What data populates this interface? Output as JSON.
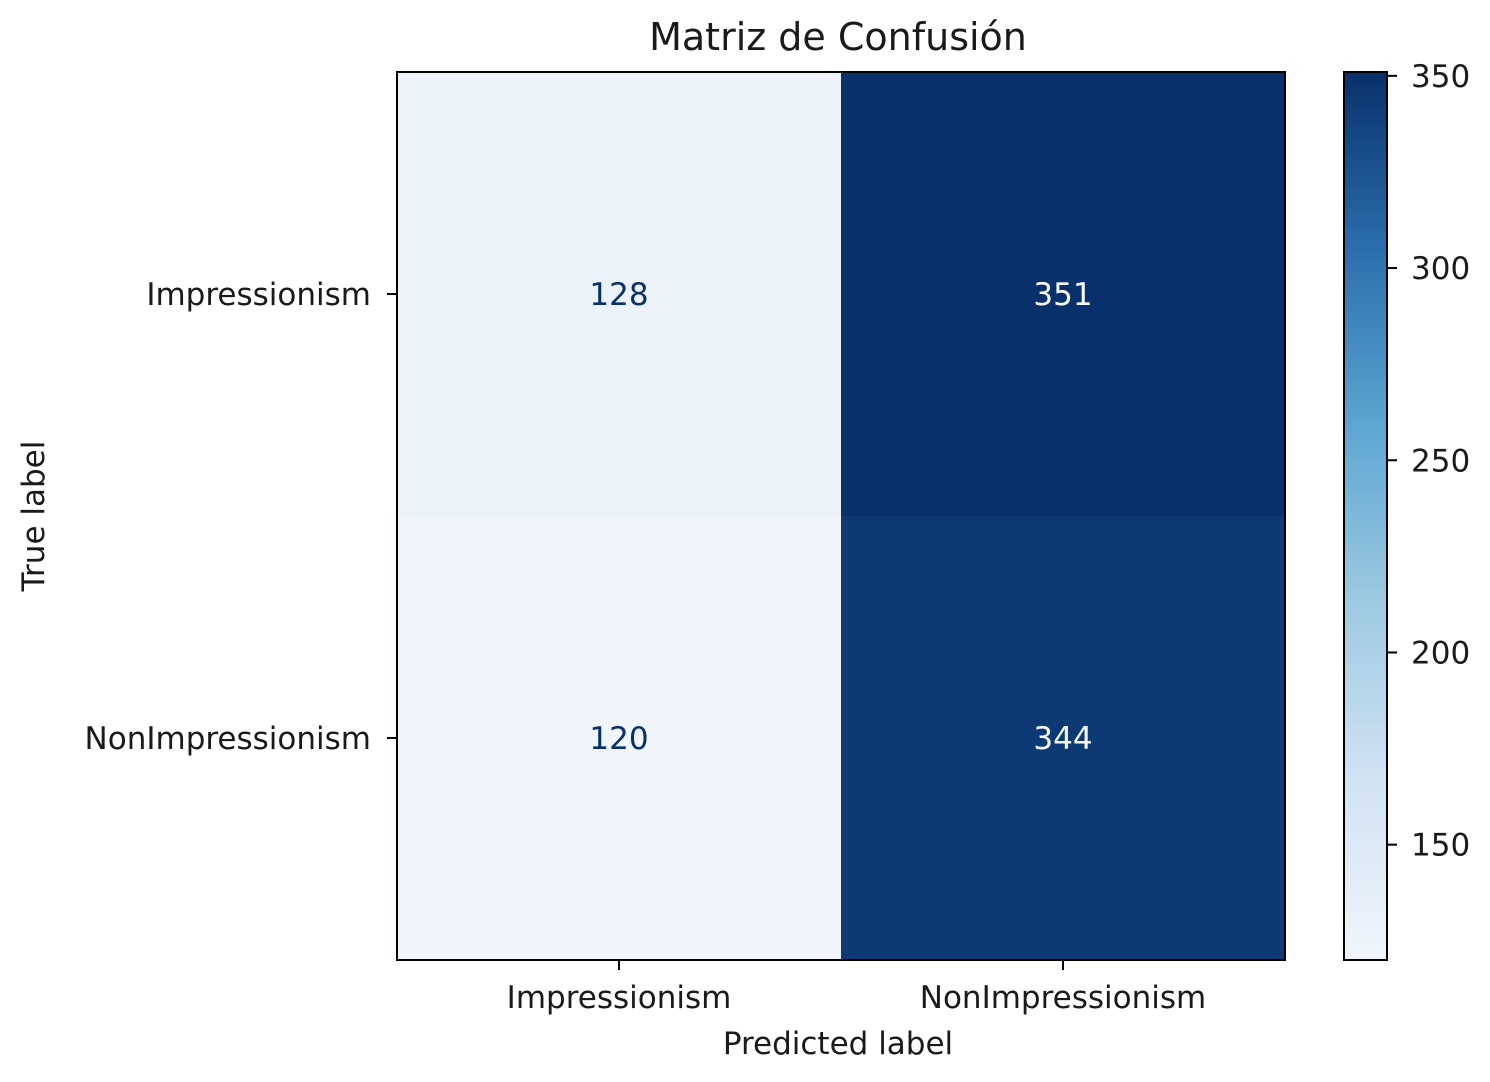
{
  "chart_data": {
    "type": "heatmap",
    "title": "Matriz de Confusión",
    "xlabel": "Predicted label",
    "ylabel": "True label",
    "x_categories": [
      "Impressionism",
      "NonImpressionism"
    ],
    "y_categories": [
      "Impressionism",
      "NonImpressionism"
    ],
    "values": [
      [
        128,
        351
      ],
      [
        120,
        344
      ]
    ],
    "colormap": "Blues",
    "colorbar": {
      "vmin": 120,
      "vmax": 351,
      "ticks": [
        150,
        200,
        250,
        300,
        350
      ],
      "tick_labels": [
        "150",
        "200",
        "250",
        "300",
        "350"
      ]
    },
    "grid": false,
    "colors": {
      "low_text": "#08306b",
      "high_text": "#f7fbff"
    }
  }
}
